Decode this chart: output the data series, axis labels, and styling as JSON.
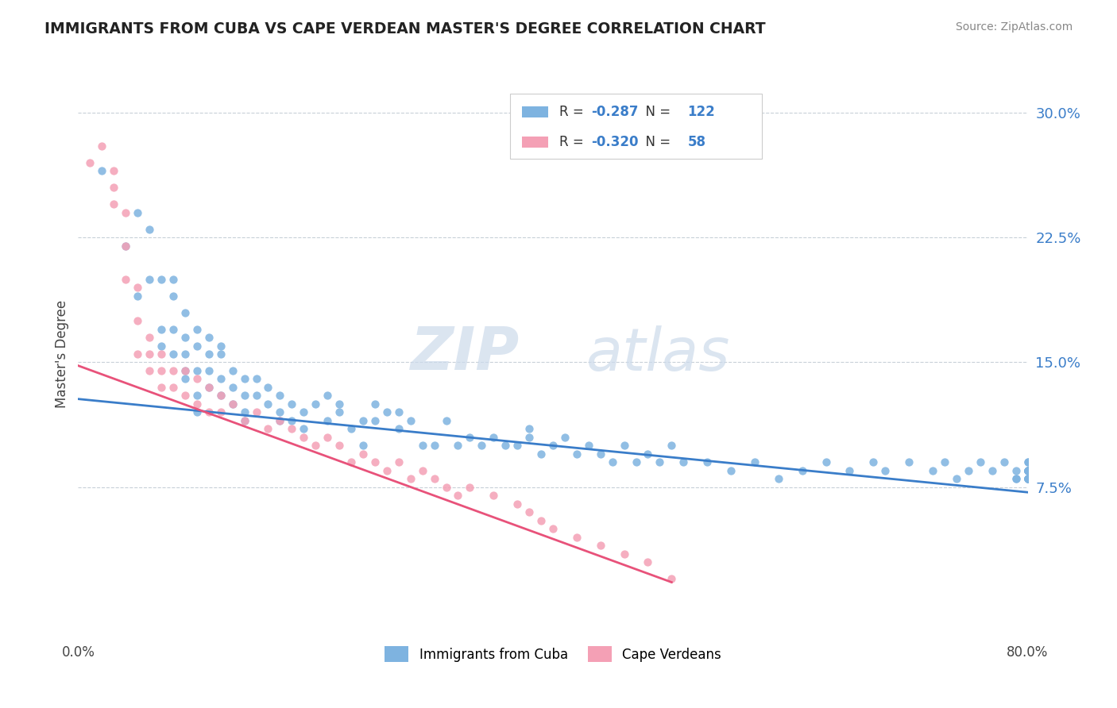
{
  "title": "IMMIGRANTS FROM CUBA VS CAPE VERDEAN MASTER'S DEGREE CORRELATION CHART",
  "source": "Source: ZipAtlas.com",
  "ylabel": "Master's Degree",
  "yticks": [
    "7.5%",
    "15.0%",
    "22.5%",
    "30.0%"
  ],
  "ytick_vals": [
    0.075,
    0.15,
    0.225,
    0.3
  ],
  "xlim": [
    0.0,
    0.8
  ],
  "ylim": [
    -0.015,
    0.325
  ],
  "legend_label1": "Immigrants from Cuba",
  "legend_label2": "Cape Verdeans",
  "R1": "-0.287",
  "N1": "122",
  "R2": "-0.320",
  "N2": "58",
  "color_blue": "#7eb3e0",
  "color_pink": "#f4a0b5",
  "line_color_blue": "#3a7dc9",
  "line_color_pink": "#e8527a",
  "watermark_zip": "ZIP",
  "watermark_atlas": "atlas",
  "blue_scatter_x": [
    0.02,
    0.04,
    0.05,
    0.05,
    0.06,
    0.06,
    0.07,
    0.07,
    0.07,
    0.08,
    0.08,
    0.08,
    0.08,
    0.09,
    0.09,
    0.09,
    0.09,
    0.09,
    0.1,
    0.1,
    0.1,
    0.1,
    0.1,
    0.11,
    0.11,
    0.11,
    0.11,
    0.12,
    0.12,
    0.12,
    0.12,
    0.13,
    0.13,
    0.13,
    0.14,
    0.14,
    0.14,
    0.14,
    0.15,
    0.15,
    0.16,
    0.16,
    0.17,
    0.17,
    0.17,
    0.18,
    0.18,
    0.19,
    0.19,
    0.2,
    0.21,
    0.21,
    0.22,
    0.22,
    0.23,
    0.24,
    0.24,
    0.25,
    0.25,
    0.26,
    0.27,
    0.27,
    0.28,
    0.29,
    0.3,
    0.31,
    0.32,
    0.33,
    0.34,
    0.35,
    0.36,
    0.37,
    0.38,
    0.38,
    0.39,
    0.4,
    0.41,
    0.42,
    0.43,
    0.44,
    0.45,
    0.46,
    0.47,
    0.48,
    0.49,
    0.5,
    0.51,
    0.53,
    0.55,
    0.57,
    0.59,
    0.61,
    0.63,
    0.65,
    0.67,
    0.68,
    0.7,
    0.72,
    0.73,
    0.74,
    0.75,
    0.76,
    0.77,
    0.78,
    0.79,
    0.79,
    0.79,
    0.8,
    0.8,
    0.8,
    0.8,
    0.8,
    0.8,
    0.8,
    0.8,
    0.8,
    0.8,
    0.8,
    0.8,
    0.8,
    0.8,
    0.8,
    0.8,
    0.8,
    0.8,
    0.8
  ],
  "blue_scatter_y": [
    0.265,
    0.22,
    0.19,
    0.24,
    0.2,
    0.23,
    0.2,
    0.17,
    0.16,
    0.19,
    0.2,
    0.17,
    0.155,
    0.165,
    0.18,
    0.155,
    0.14,
    0.145,
    0.17,
    0.16,
    0.145,
    0.13,
    0.12,
    0.165,
    0.155,
    0.145,
    0.135,
    0.16,
    0.155,
    0.14,
    0.13,
    0.145,
    0.135,
    0.125,
    0.14,
    0.13,
    0.12,
    0.115,
    0.14,
    0.13,
    0.135,
    0.125,
    0.12,
    0.13,
    0.115,
    0.125,
    0.115,
    0.12,
    0.11,
    0.125,
    0.13,
    0.115,
    0.125,
    0.12,
    0.11,
    0.115,
    0.1,
    0.125,
    0.115,
    0.12,
    0.11,
    0.12,
    0.115,
    0.1,
    0.1,
    0.115,
    0.1,
    0.105,
    0.1,
    0.105,
    0.1,
    0.1,
    0.11,
    0.105,
    0.095,
    0.1,
    0.105,
    0.095,
    0.1,
    0.095,
    0.09,
    0.1,
    0.09,
    0.095,
    0.09,
    0.1,
    0.09,
    0.09,
    0.085,
    0.09,
    0.08,
    0.085,
    0.09,
    0.085,
    0.09,
    0.085,
    0.09,
    0.085,
    0.09,
    0.08,
    0.085,
    0.09,
    0.085,
    0.09,
    0.08,
    0.085,
    0.08,
    0.085,
    0.09,
    0.085,
    0.09,
    0.08,
    0.085,
    0.08,
    0.085,
    0.08,
    0.08,
    0.085,
    0.08,
    0.085,
    0.08,
    0.085,
    0.08,
    0.085,
    0.08,
    0.085
  ],
  "pink_scatter_x": [
    0.01,
    0.02,
    0.03,
    0.03,
    0.03,
    0.04,
    0.04,
    0.04,
    0.05,
    0.05,
    0.05,
    0.06,
    0.06,
    0.06,
    0.07,
    0.07,
    0.07,
    0.08,
    0.08,
    0.09,
    0.09,
    0.1,
    0.1,
    0.11,
    0.11,
    0.12,
    0.12,
    0.13,
    0.14,
    0.15,
    0.16,
    0.17,
    0.18,
    0.19,
    0.2,
    0.21,
    0.22,
    0.23,
    0.24,
    0.25,
    0.26,
    0.27,
    0.28,
    0.29,
    0.3,
    0.31,
    0.32,
    0.33,
    0.35,
    0.37,
    0.38,
    0.39,
    0.4,
    0.42,
    0.44,
    0.46,
    0.48,
    0.5
  ],
  "pink_scatter_y": [
    0.27,
    0.28,
    0.265,
    0.255,
    0.245,
    0.24,
    0.22,
    0.2,
    0.195,
    0.175,
    0.155,
    0.165,
    0.155,
    0.145,
    0.155,
    0.145,
    0.135,
    0.145,
    0.135,
    0.145,
    0.13,
    0.14,
    0.125,
    0.135,
    0.12,
    0.13,
    0.12,
    0.125,
    0.115,
    0.12,
    0.11,
    0.115,
    0.11,
    0.105,
    0.1,
    0.105,
    0.1,
    0.09,
    0.095,
    0.09,
    0.085,
    0.09,
    0.08,
    0.085,
    0.08,
    0.075,
    0.07,
    0.075,
    0.07,
    0.065,
    0.06,
    0.055,
    0.05,
    0.045,
    0.04,
    0.035,
    0.03,
    0.02
  ],
  "blue_line_x": [
    0.0,
    0.8
  ],
  "blue_line_y": [
    0.128,
    0.072
  ],
  "pink_line_x": [
    0.0,
    0.5
  ],
  "pink_line_y": [
    0.148,
    0.018
  ]
}
